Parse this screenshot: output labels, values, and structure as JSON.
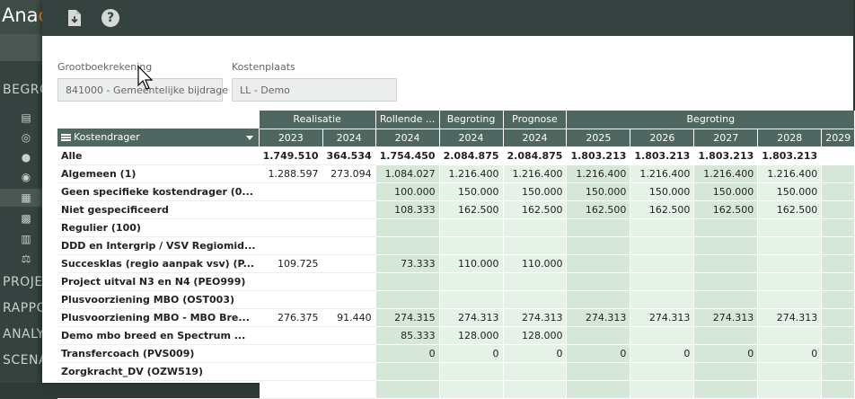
{
  "app": {
    "logo_text": "Ana",
    "logo_accent": "c",
    "sidebar_sections": [
      "BEGRO",
      "PROJE",
      "RAPPO",
      "ANALY",
      "SCENA"
    ]
  },
  "toolbar": {
    "download_icon": "download-icon",
    "help_label": "?"
  },
  "filters": {
    "grootboek_label": "Grootboekrekening",
    "grootboek_value": "841000 - Gemeentelijke bijdrage",
    "kostenplaats_label": "Kostenplaats",
    "kostenplaats_value": "LL - Demo"
  },
  "table": {
    "group_headers": {
      "realisatie": "Realisatie",
      "rollende": "Rollende ...",
      "begroting": "Begroting",
      "prognose": "Prognose",
      "begroting_future": "Begroting"
    },
    "kostendrager_label": "Kostendrager",
    "years": [
      "2023",
      "2024",
      "2024",
      "2024",
      "2024",
      "2025",
      "2026",
      "2027",
      "2028",
      "2029"
    ],
    "rows": [
      {
        "name": "Alle",
        "values": [
          "1.749.510",
          "364.534",
          "1.754.450",
          "2.084.875",
          "2.084.875",
          "1.803.213",
          "1.803.213",
          "1.803.213",
          "1.803.213",
          ""
        ]
      },
      {
        "name": "Algemeen (1)",
        "values": [
          "1.288.597",
          "273.094",
          "1.084.027",
          "1.216.400",
          "1.216.400",
          "1.216.400",
          "1.216.400",
          "1.216.400",
          "1.216.400",
          ""
        ]
      },
      {
        "name": "Geen specifieke kostendrager (0...",
        "values": [
          "",
          "",
          "100.000",
          "150.000",
          "150.000",
          "150.000",
          "150.000",
          "150.000",
          "150.000",
          ""
        ]
      },
      {
        "name": "Niet gespecificeerd",
        "values": [
          "",
          "",
          "108.333",
          "162.500",
          "162.500",
          "162.500",
          "162.500",
          "162.500",
          "162.500",
          ""
        ]
      },
      {
        "name": "Regulier (100)",
        "values": [
          "",
          "",
          "",
          "",
          "",
          "",
          "",
          "",
          "",
          ""
        ]
      },
      {
        "name": "DDD en Intergrip / VSV Regiomid...",
        "values": [
          "",
          "",
          "",
          "",
          "",
          "",
          "",
          "",
          "",
          ""
        ]
      },
      {
        "name": "Succesklas (regio aanpak vsv) (P...",
        "values": [
          "109.725",
          "",
          "73.333",
          "110.000",
          "110.000",
          "",
          "",
          "",
          "",
          ""
        ]
      },
      {
        "name": "Project uitval N3 en N4 (PEO999)",
        "values": [
          "",
          "",
          "",
          "",
          "",
          "",
          "",
          "",
          "",
          ""
        ]
      },
      {
        "name": "Plusvoorziening MBO (OST003)",
        "values": [
          "",
          "",
          "",
          "",
          "",
          "",
          "",
          "",
          "",
          ""
        ]
      },
      {
        "name": "Plusvoorziening MBO - MBO Bre...",
        "values": [
          "276.375",
          "91.440",
          "274.315",
          "274.313",
          "274.313",
          "274.313",
          "274.313",
          "274.313",
          "274.313",
          ""
        ]
      },
      {
        "name": "Demo mbo breed en Spectrum ...",
        "values": [
          "",
          "",
          "85.333",
          "128.000",
          "128.000",
          "",
          "",
          "",
          "",
          ""
        ]
      },
      {
        "name": "Transfercoach (PVS009)",
        "values": [
          "",
          "",
          "0",
          "0",
          "0",
          "0",
          "0",
          "0",
          "0",
          ""
        ]
      },
      {
        "name": "Zorgkracht_DV (OZW519)",
        "values": [
          "",
          "",
          "",
          "",
          "",
          "",
          "",
          "",
          "",
          ""
        ]
      },
      {
        "name": "",
        "values": [
          "",
          "",
          "",
          "",
          "",
          "",
          "",
          "",
          "",
          ""
        ]
      }
    ]
  },
  "colors": {
    "header_bg": "#4f6760",
    "toolbar_bg": "#36423f",
    "accent": "#e8862c"
  }
}
